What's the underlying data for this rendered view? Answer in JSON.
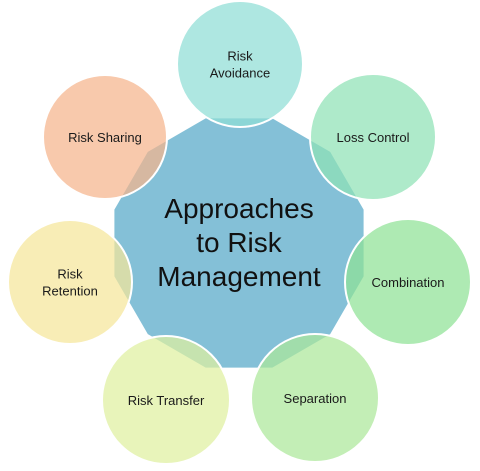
{
  "center": {
    "lines": [
      "Approaches",
      "to Risk",
      "Management"
    ],
    "color": "#6fb5d0"
  },
  "items": [
    {
      "id": "risk-avoidance",
      "lines": [
        "Risk",
        "Avoidance"
      ],
      "color": "#8fded6"
    },
    {
      "id": "loss-control",
      "lines": [
        "Loss Control"
      ],
      "color": "#8fe2b6"
    },
    {
      "id": "combination",
      "lines": [
        "Combination"
      ],
      "color": "#8fe296"
    },
    {
      "id": "separation",
      "lines": [
        "Separation"
      ],
      "color": "#ace89a"
    },
    {
      "id": "risk-transfer",
      "lines": [
        "Risk Transfer"
      ],
      "color": "#dff0a0"
    },
    {
      "id": "risk-retention",
      "lines": [
        "Risk",
        "Retention"
      ],
      "color": "#f5e69a"
    },
    {
      "id": "risk-sharing",
      "lines": [
        "Risk Sharing"
      ],
      "color": "#f5b48c"
    }
  ]
}
